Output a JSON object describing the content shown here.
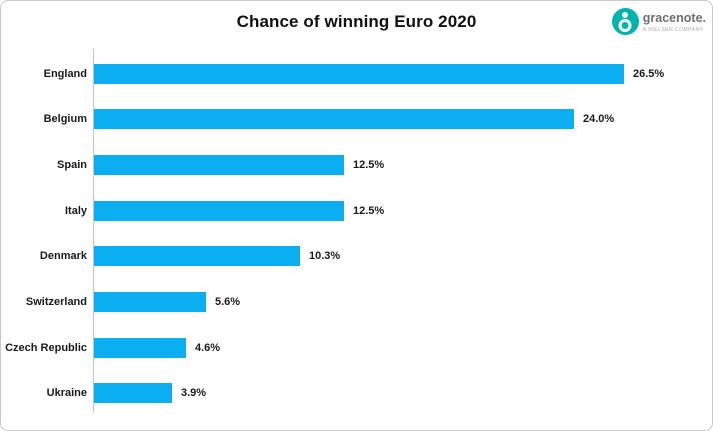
{
  "header": {
    "title": "Chance of winning Euro 2020"
  },
  "logo": {
    "brand": "gracenote.",
    "tagline": "A NIELSEN COMPANY",
    "icon": "gracenote-circle-icon",
    "icon_color": "#00B3AE",
    "brand_text_color": "#6D6E71",
    "tagline_text_color": "#A7A9AC"
  },
  "chart_data": {
    "type": "bar",
    "orientation": "horizontal",
    "title": "Chance of winning Euro 2020",
    "categories": [
      "England",
      "Belgium",
      "Spain",
      "Italy",
      "Denmark",
      "Switzerland",
      "Czech Republic",
      "Ukraine"
    ],
    "values": [
      26.5,
      24.0,
      12.5,
      12.5,
      10.3,
      5.6,
      4.6,
      3.9
    ],
    "value_labels": [
      "26.5%",
      "24.0%",
      "12.5%",
      "12.5%",
      "10.3%",
      "5.6%",
      "4.6%",
      "3.9%"
    ],
    "unit": "%",
    "xlim": [
      0,
      26.5
    ],
    "xlabel": "",
    "ylabel": "",
    "bar_color": "#0BAEF0",
    "axis_color": "#C4C4C4",
    "label_color": "#1A1A1A",
    "grid": false,
    "legend": false,
    "data_labels": "outside-end"
  }
}
